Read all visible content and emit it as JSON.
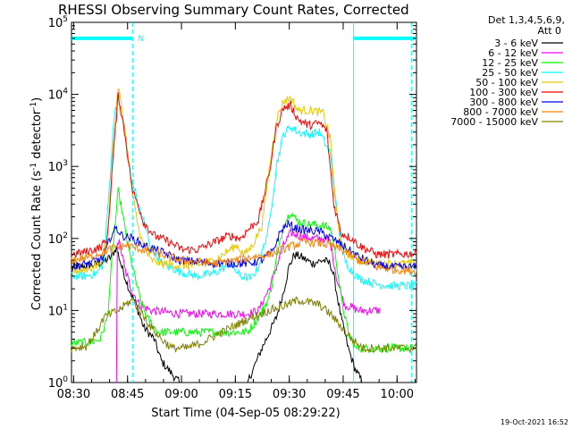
{
  "chart_data": {
    "type": "line",
    "title": "RHESSI Observing Summary Count Rates, Corrected",
    "xlabel": "Start Time (04-Sep-05 08:29:22)",
    "ylabel_main": "Corrected Count Rate (s",
    "ylabel_sup1": "-1",
    "ylabel_mid": " detector",
    "ylabel_sup2": "-1",
    "ylabel_end": ")",
    "x_unit": "minutes after 08:29:22",
    "xlim": [
      0,
      96
    ],
    "yscale": "log",
    "ylim": [
      1,
      100000
    ],
    "x_ticks": [
      {
        "label": "08:30",
        "value": 0.6
      },
      {
        "label": "08:45",
        "value": 15.6
      },
      {
        "label": "09:00",
        "value": 30.6
      },
      {
        "label": "09:15",
        "value": 45.6
      },
      {
        "label": "09:30",
        "value": 60.6
      },
      {
        "label": "09:45",
        "value": 75.6
      },
      {
        "label": "10:00",
        "value": 90.6
      }
    ],
    "y_ticks": [
      {
        "base": "10",
        "exp": "0",
        "value": 1
      },
      {
        "base": "10",
        "exp": "1",
        "value": 10
      },
      {
        "base": "10",
        "exp": "2",
        "value": 100
      },
      {
        "base": "10",
        "exp": "3",
        "value": 1000
      },
      {
        "base": "10",
        "exp": "4",
        "value": 10000
      },
      {
        "base": "10",
        "exp": "5",
        "value": 100000
      }
    ],
    "legend_header": [
      "Det 1,3,4,5,6,9,",
      "Att 0"
    ],
    "flag_label": "N",
    "flag_bars": [
      {
        "x_start": 0,
        "x_end": 17,
        "y": 60000
      },
      {
        "x_start": 78.5,
        "x_end": 96,
        "y": 60000
      }
    ],
    "vertical_markers": [
      {
        "x": 17.0,
        "style": "dashed"
      },
      {
        "x": 78.5,
        "style": "solid"
      },
      {
        "x": 94.6,
        "style": "dashed"
      }
    ],
    "series": [
      {
        "name": "3 - 6 keV",
        "color": "#000000",
        "points": [
          [
            0,
            40
          ],
          [
            5,
            42
          ],
          [
            8,
            45
          ],
          [
            11,
            55
          ],
          [
            12.5,
            75
          ],
          [
            14,
            40
          ],
          [
            16,
            20
          ],
          [
            18,
            12
          ],
          [
            20,
            6
          ],
          [
            23,
            4
          ],
          [
            25,
            2
          ],
          [
            27,
            1.5
          ],
          [
            30,
            1
          ],
          [
            40,
            1
          ],
          [
            49,
            1
          ],
          [
            53,
            3
          ],
          [
            57,
            8
          ],
          [
            59,
            18
          ],
          [
            60.5,
            40
          ],
          [
            62,
            60
          ],
          [
            64,
            55
          ],
          [
            67,
            45
          ],
          [
            70,
            50
          ],
          [
            72,
            45
          ],
          [
            73,
            30
          ],
          [
            75,
            8
          ],
          [
            77,
            3
          ],
          [
            79,
            1.5
          ],
          [
            81,
            1
          ],
          [
            96,
            1
          ]
        ]
      },
      {
        "name": "6 - 12 keV",
        "color": "#ff00ff",
        "points": [
          [
            12.5,
            1
          ],
          [
            12.5,
            100
          ],
          [
            13.5,
            80
          ],
          [
            15,
            35
          ],
          [
            17,
            18
          ],
          [
            19,
            12
          ],
          [
            22,
            10
          ],
          [
            30,
            9
          ],
          [
            40,
            9
          ],
          [
            49,
            9
          ],
          [
            52,
            10
          ],
          [
            55,
            20
          ],
          [
            57,
            40
          ],
          [
            59,
            80
          ],
          [
            61,
            120
          ],
          [
            63,
            110
          ],
          [
            67,
            100
          ],
          [
            70,
            100
          ],
          [
            72,
            90
          ],
          [
            74,
            25
          ],
          [
            76,
            12
          ],
          [
            80,
            10
          ],
          [
            84,
            10
          ],
          [
            86,
            10
          ]
        ]
      },
      {
        "name": "12 - 25 keV",
        "color": "#00ff00",
        "points": [
          [
            0,
            3.5
          ],
          [
            5,
            3.6
          ],
          [
            8,
            4
          ],
          [
            10,
            8
          ],
          [
            11.5,
            70
          ],
          [
            13,
            450
          ],
          [
            14,
            250
          ],
          [
            15.5,
            90
          ],
          [
            17,
            40
          ],
          [
            19,
            15
          ],
          [
            21,
            8
          ],
          [
            24,
            5
          ],
          [
            30,
            5
          ],
          [
            40,
            5
          ],
          [
            49,
            5
          ],
          [
            52,
            8
          ],
          [
            55,
            15
          ],
          [
            57,
            50
          ],
          [
            59,
            150
          ],
          [
            61,
            240
          ],
          [
            62.5,
            180
          ],
          [
            65,
            160
          ],
          [
            70,
            150
          ],
          [
            72,
            140
          ],
          [
            73.5,
            60
          ],
          [
            75,
            15
          ],
          [
            77,
            5
          ],
          [
            79,
            3
          ],
          [
            85,
            3
          ],
          [
            96,
            3
          ]
        ]
      },
      {
        "name": "25 - 50 keV",
        "color": "#00ffff",
        "points": [
          [
            0,
            30
          ],
          [
            4,
            30
          ],
          [
            7,
            33
          ],
          [
            9,
            45
          ],
          [
            10.5,
            500
          ],
          [
            12,
            6000
          ],
          [
            13,
            8000
          ],
          [
            14.5,
            4000
          ],
          [
            16.5,
            700
          ],
          [
            17.5,
            500
          ],
          [
            18.5,
            300
          ],
          [
            20,
            180
          ],
          [
            22,
            80
          ],
          [
            25,
            45
          ],
          [
            30,
            35
          ],
          [
            35,
            30
          ],
          [
            40,
            33
          ],
          [
            44,
            45
          ],
          [
            47,
            30
          ],
          [
            50,
            28
          ],
          [
            52,
            40
          ],
          [
            55,
            150
          ],
          [
            57,
            1000
          ],
          [
            59,
            2800
          ],
          [
            61,
            3600
          ],
          [
            63,
            3000
          ],
          [
            66,
            2800
          ],
          [
            69,
            3000
          ],
          [
            72,
            1500
          ],
          [
            74,
            200
          ],
          [
            76,
            50
          ],
          [
            78,
            35
          ],
          [
            80,
            28
          ],
          [
            85,
            23
          ],
          [
            90,
            22
          ],
          [
            96,
            22
          ]
        ]
      },
      {
        "name": "50 - 100 keV",
        "color": "#e8c800",
        "points": [
          [
            0,
            35
          ],
          [
            5,
            38
          ],
          [
            8,
            45
          ],
          [
            10,
            100
          ],
          [
            11.5,
            1500
          ],
          [
            13,
            13000
          ],
          [
            15,
            3000
          ],
          [
            17,
            400
          ],
          [
            18.5,
            150
          ],
          [
            20,
            80
          ],
          [
            22,
            50
          ],
          [
            25,
            45
          ],
          [
            30,
            42
          ],
          [
            35,
            42
          ],
          [
            40,
            50
          ],
          [
            44,
            70
          ],
          [
            46,
            80
          ],
          [
            48,
            60
          ],
          [
            50,
            75
          ],
          [
            53,
            150
          ],
          [
            55,
            900
          ],
          [
            57,
            4500
          ],
          [
            59,
            8000
          ],
          [
            61,
            9000
          ],
          [
            63,
            6000
          ],
          [
            67,
            6000
          ],
          [
            70,
            5500
          ],
          [
            72,
            2500
          ],
          [
            73.5,
            300
          ],
          [
            75,
            80
          ],
          [
            77,
            60
          ],
          [
            80,
            50
          ],
          [
            85,
            45
          ],
          [
            96,
            45
          ]
        ]
      },
      {
        "name": "100 - 300 keV",
        "color": "#ff0000",
        "points": [
          [
            0,
            60
          ],
          [
            4,
            65
          ],
          [
            8,
            75
          ],
          [
            10,
            100
          ],
          [
            11.5,
            1200
          ],
          [
            13,
            10000
          ],
          [
            15,
            2500
          ],
          [
            17,
            450
          ],
          [
            18.5,
            300
          ],
          [
            20,
            170
          ],
          [
            23,
            110
          ],
          [
            27,
            90
          ],
          [
            31,
            70
          ],
          [
            35,
            70
          ],
          [
            40,
            90
          ],
          [
            44,
            110
          ],
          [
            47,
            100
          ],
          [
            49,
            130
          ],
          [
            52,
            180
          ],
          [
            55,
            800
          ],
          [
            57,
            3500
          ],
          [
            59,
            6500
          ],
          [
            61,
            7000
          ],
          [
            63,
            4500
          ],
          [
            66,
            3700
          ],
          [
            69,
            4000
          ],
          [
            71,
            3200
          ],
          [
            73,
            300
          ],
          [
            75,
            120
          ],
          [
            78,
            100
          ],
          [
            80,
            80
          ],
          [
            85,
            60
          ],
          [
            90,
            60
          ],
          [
            96,
            62
          ]
        ]
      },
      {
        "name": "300 - 800 keV",
        "color": "#0000ff",
        "points": [
          [
            0,
            40
          ],
          [
            5,
            45
          ],
          [
            9,
            55
          ],
          [
            11,
            110
          ],
          [
            12.5,
            140
          ],
          [
            14,
            110
          ],
          [
            17,
            100
          ],
          [
            20,
            80
          ],
          [
            25,
            65
          ],
          [
            30,
            50
          ],
          [
            40,
            45
          ],
          [
            45,
            45
          ],
          [
            49,
            45
          ],
          [
            53,
            50
          ],
          [
            56,
            65
          ],
          [
            58,
            120
          ],
          [
            60,
            160
          ],
          [
            62,
            140
          ],
          [
            65,
            130
          ],
          [
            69,
            125
          ],
          [
            71,
            110
          ],
          [
            74,
            90
          ],
          [
            77,
            70
          ],
          [
            80,
            55
          ],
          [
            85,
            42
          ],
          [
            90,
            40
          ],
          [
            96,
            40
          ]
        ]
      },
      {
        "name": "800 - 7000 keV",
        "color": "#ff8000",
        "points": [
          [
            0,
            50
          ],
          [
            5,
            55
          ],
          [
            9,
            65
          ],
          [
            12,
            75
          ],
          [
            15,
            80
          ],
          [
            20,
            70
          ],
          [
            25,
            60
          ],
          [
            30,
            50
          ],
          [
            40,
            45
          ],
          [
            46,
            50
          ],
          [
            50,
            55
          ],
          [
            55,
            60
          ],
          [
            60,
            75
          ],
          [
            65,
            90
          ],
          [
            70,
            85
          ],
          [
            75,
            70
          ],
          [
            80,
            50
          ],
          [
            85,
            40
          ],
          [
            90,
            37
          ],
          [
            96,
            35
          ]
        ]
      },
      {
        "name": "7000 - 15000 keV",
        "color": "#808000",
        "points": [
          [
            0,
            3
          ],
          [
            4,
            3.2
          ],
          [
            7,
            5
          ],
          [
            9,
            8
          ],
          [
            11,
            9
          ],
          [
            13,
            10
          ],
          [
            15,
            12
          ],
          [
            17,
            14
          ],
          [
            19,
            10
          ],
          [
            22,
            6
          ],
          [
            25,
            4
          ],
          [
            28,
            3
          ],
          [
            32,
            3
          ],
          [
            36,
            3.5
          ],
          [
            40,
            4.5
          ],
          [
            45,
            6
          ],
          [
            50,
            8
          ],
          [
            55,
            10
          ],
          [
            60,
            12
          ],
          [
            63,
            14
          ],
          [
            66,
            13
          ],
          [
            69,
            12
          ],
          [
            72,
            9
          ],
          [
            75,
            6
          ],
          [
            78,
            4
          ],
          [
            81,
            3
          ],
          [
            85,
            3
          ],
          [
            90,
            3
          ],
          [
            96,
            3
          ]
        ]
      }
    ],
    "footer_timestamp": "19-Oct-2021 16:52"
  }
}
